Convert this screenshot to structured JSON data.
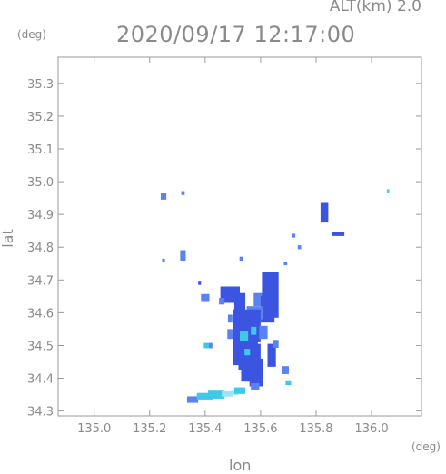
{
  "header": {
    "altitude_label": "ALT(km)  2.0",
    "timestamp": "2020/09/17 12:17:00"
  },
  "chart_data": {
    "type": "heatmap",
    "title": "2020/09/17 12:17:00",
    "xlabel": "lon",
    "ylabel": "lat",
    "x_unit": "(deg)",
    "y_unit": "(deg)",
    "xlim": [
      134.87,
      136.18
    ],
    "ylim": [
      34.285,
      35.38
    ],
    "x_ticks": [
      135.0,
      135.2,
      135.4,
      135.6,
      135.8,
      136.0
    ],
    "x_tick_labels": [
      "135.0",
      "135.2",
      "135.4",
      "135.6",
      "135.8",
      "136.0"
    ],
    "y_ticks": [
      34.3,
      34.4,
      34.5,
      34.6,
      34.7,
      34.8,
      34.9,
      35.0,
      35.1,
      35.2,
      35.3
    ],
    "y_tick_labels": [
      "34.3",
      "34.4",
      "34.5",
      "34.6",
      "34.7",
      "34.8",
      "34.9",
      "35.0",
      "35.1",
      "35.2",
      "35.3"
    ],
    "grid": false,
    "colors": {
      "strong": "#3b55e0",
      "moderate": "#5a82f0",
      "light": "#3ec8ea",
      "faint": "#9fe3f5"
    },
    "echoes": [
      {
        "lon": 135.25,
        "lat": 34.955,
        "dlon": 0.01,
        "dlat": 0.01,
        "level": "moderate"
      },
      {
        "lon": 135.32,
        "lat": 34.965,
        "dlon": 0.006,
        "dlat": 0.006,
        "level": "moderate"
      },
      {
        "lon": 135.83,
        "lat": 34.905,
        "dlon": 0.014,
        "dlat": 0.03,
        "level": "strong"
      },
      {
        "lon": 135.88,
        "lat": 34.84,
        "dlon": 0.022,
        "dlat": 0.006,
        "level": "strong"
      },
      {
        "lon": 136.06,
        "lat": 34.972,
        "dlon": 0.004,
        "dlat": 0.005,
        "level": "light"
      },
      {
        "lon": 135.32,
        "lat": 34.775,
        "dlon": 0.01,
        "dlat": 0.016,
        "level": "moderate"
      },
      {
        "lon": 135.25,
        "lat": 34.76,
        "dlon": 0.005,
        "dlat": 0.005,
        "level": "moderate"
      },
      {
        "lon": 135.53,
        "lat": 34.765,
        "dlon": 0.006,
        "dlat": 0.006,
        "level": "moderate"
      },
      {
        "lon": 135.72,
        "lat": 34.835,
        "dlon": 0.005,
        "dlat": 0.006,
        "level": "moderate"
      },
      {
        "lon": 135.74,
        "lat": 34.8,
        "dlon": 0.006,
        "dlat": 0.006,
        "level": "moderate"
      },
      {
        "lon": 135.69,
        "lat": 34.75,
        "dlon": 0.006,
        "dlat": 0.005,
        "level": "moderate"
      },
      {
        "lon": 135.38,
        "lat": 34.69,
        "dlon": 0.005,
        "dlat": 0.005,
        "level": "strong"
      },
      {
        "lon": 135.4,
        "lat": 34.645,
        "dlon": 0.015,
        "dlat": 0.012,
        "level": "moderate"
      },
      {
        "lon": 135.49,
        "lat": 34.655,
        "dlon": 0.035,
        "dlat": 0.025,
        "level": "strong"
      },
      {
        "lon": 135.525,
        "lat": 34.625,
        "dlon": 0.02,
        "dlat": 0.035,
        "level": "strong"
      },
      {
        "lon": 135.46,
        "lat": 34.635,
        "dlon": 0.01,
        "dlat": 0.01,
        "level": "moderate"
      },
      {
        "lon": 135.6,
        "lat": 34.64,
        "dlon": 0.025,
        "dlat": 0.02,
        "level": "moderate"
      },
      {
        "lon": 135.635,
        "lat": 34.655,
        "dlon": 0.03,
        "dlat": 0.07,
        "level": "strong"
      },
      {
        "lon": 135.625,
        "lat": 34.61,
        "dlon": 0.025,
        "dlat": 0.04,
        "level": "strong"
      },
      {
        "lon": 135.58,
        "lat": 34.6,
        "dlon": 0.03,
        "dlat": 0.02,
        "level": "moderate"
      },
      {
        "lon": 135.55,
        "lat": 34.56,
        "dlon": 0.05,
        "dlat": 0.05,
        "level": "strong"
      },
      {
        "lon": 135.545,
        "lat": 34.5,
        "dlon": 0.045,
        "dlat": 0.06,
        "level": "strong"
      },
      {
        "lon": 135.56,
        "lat": 34.465,
        "dlon": 0.04,
        "dlat": 0.04,
        "level": "strong"
      },
      {
        "lon": 135.57,
        "lat": 34.425,
        "dlon": 0.04,
        "dlat": 0.035,
        "level": "strong"
      },
      {
        "lon": 135.585,
        "lat": 34.395,
        "dlon": 0.025,
        "dlat": 0.02,
        "level": "strong"
      },
      {
        "lon": 135.58,
        "lat": 34.375,
        "dlon": 0.015,
        "dlat": 0.01,
        "level": "moderate"
      },
      {
        "lon": 135.54,
        "lat": 34.528,
        "dlon": 0.015,
        "dlat": 0.015,
        "level": "light"
      },
      {
        "lon": 135.552,
        "lat": 34.48,
        "dlon": 0.01,
        "dlat": 0.01,
        "level": "light"
      },
      {
        "lon": 135.575,
        "lat": 34.545,
        "dlon": 0.01,
        "dlat": 0.012,
        "level": "light"
      },
      {
        "lon": 135.49,
        "lat": 34.535,
        "dlon": 0.01,
        "dlat": 0.015,
        "level": "moderate"
      },
      {
        "lon": 135.61,
        "lat": 34.54,
        "dlon": 0.015,
        "dlat": 0.02,
        "level": "moderate"
      },
      {
        "lon": 135.64,
        "lat": 34.47,
        "dlon": 0.015,
        "dlat": 0.035,
        "level": "strong"
      },
      {
        "lon": 135.655,
        "lat": 34.505,
        "dlon": 0.01,
        "dlat": 0.012,
        "level": "moderate"
      },
      {
        "lon": 135.405,
        "lat": 34.5,
        "dlon": 0.01,
        "dlat": 0.008,
        "level": "light"
      },
      {
        "lon": 135.42,
        "lat": 34.5,
        "dlon": 0.006,
        "dlat": 0.008,
        "level": "moderate"
      },
      {
        "lon": 135.49,
        "lat": 34.582,
        "dlon": 0.008,
        "dlat": 0.012,
        "level": "moderate"
      },
      {
        "lon": 135.69,
        "lat": 34.425,
        "dlon": 0.012,
        "dlat": 0.012,
        "level": "moderate"
      },
      {
        "lon": 135.7,
        "lat": 34.385,
        "dlon": 0.01,
        "dlat": 0.006,
        "level": "light"
      },
      {
        "lon": 135.355,
        "lat": 34.335,
        "dlon": 0.02,
        "dlat": 0.01,
        "level": "moderate"
      },
      {
        "lon": 135.4,
        "lat": 34.345,
        "dlon": 0.03,
        "dlat": 0.01,
        "level": "light"
      },
      {
        "lon": 135.44,
        "lat": 34.35,
        "dlon": 0.03,
        "dlat": 0.012,
        "level": "light"
      },
      {
        "lon": 135.48,
        "lat": 34.352,
        "dlon": 0.02,
        "dlat": 0.008,
        "level": "faint"
      },
      {
        "lon": 135.505,
        "lat": 34.355,
        "dlon": 0.015,
        "dlat": 0.006,
        "level": "faint"
      },
      {
        "lon": 135.525,
        "lat": 34.362,
        "dlon": 0.02,
        "dlat": 0.01,
        "level": "light"
      }
    ]
  }
}
